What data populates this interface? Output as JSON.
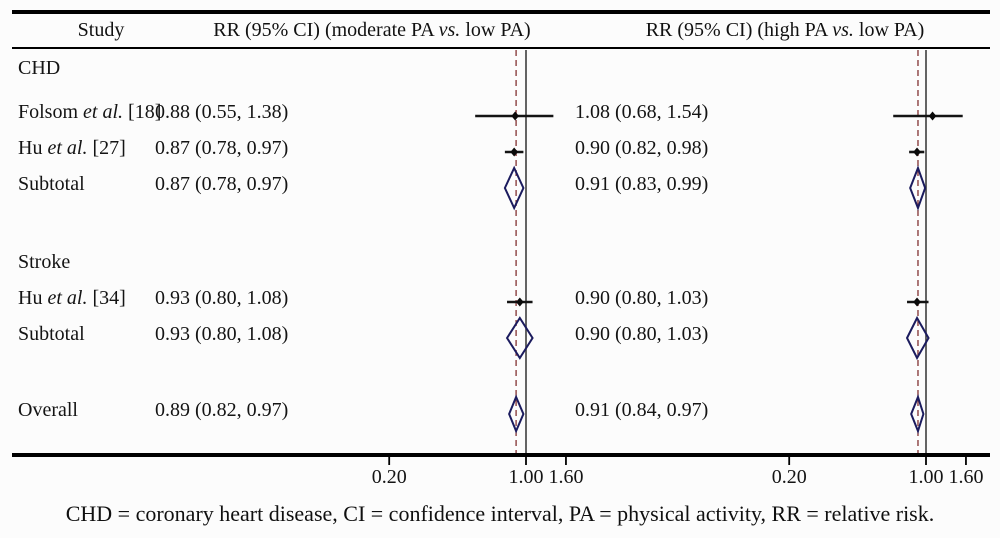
{
  "figure": {
    "header": {
      "study": "Study",
      "left_panel": {
        "pre": "RR (95% CI) (moderate PA ",
        "italic": "vs.",
        "post": " low PA)"
      },
      "right_panel": {
        "pre": "RR (95% CI) (high PA ",
        "italic": "vs.",
        "post": " low PA)"
      }
    },
    "footnote": "CHD = coronary heart disease, CI = confidence interval, PA = physical activity, RR = relative risk."
  },
  "colors": {
    "rule": "#000000",
    "ci_line": "#141414",
    "point_marker": "#0a0a0a",
    "null_line": "#4a4a4a",
    "overall_dashed_line": "#8b4040",
    "diamond_outline": "#1b1b5e",
    "text": "#141414"
  },
  "chart_data": {
    "type": "forest",
    "x_scale": "log",
    "null_value": 1.0,
    "tick_values": [
      0.2,
      1.0,
      1.6
    ],
    "tick_labels": [
      "0.20",
      "1.00",
      "1.60"
    ],
    "panels": [
      {
        "title": "RR (95% CI) (moderate PA vs. low PA)",
        "overall_rr": 0.89
      },
      {
        "title": "RR (95% CI) (high PA vs. low PA)",
        "overall_rr": 0.91
      }
    ],
    "rows": [
      {
        "kind": "group",
        "label": {
          "pre": "CHD",
          "italic": "",
          "post": ""
        },
        "panels": [
          null,
          null
        ]
      },
      {
        "kind": "study",
        "label": {
          "pre": "Folsom ",
          "italic": "et al.",
          "post": " [18]"
        },
        "panels": [
          {
            "text": "0.88 (0.55, 1.38)",
            "rr": 0.88,
            "lo": 0.55,
            "hi": 1.38
          },
          {
            "text": "1.08 (0.68, 1.54)",
            "rr": 1.08,
            "lo": 0.68,
            "hi": 1.54
          }
        ]
      },
      {
        "kind": "study",
        "label": {
          "pre": "Hu ",
          "italic": "et al.",
          "post": " [27]"
        },
        "panels": [
          {
            "text": "0.87 (0.78, 0.97)",
            "rr": 0.87,
            "lo": 0.78,
            "hi": 0.97
          },
          {
            "text": "0.90 (0.82, 0.98)",
            "rr": 0.9,
            "lo": 0.82,
            "hi": 0.98
          }
        ]
      },
      {
        "kind": "subtotal",
        "label": {
          "pre": "Subtotal",
          "italic": "",
          "post": ""
        },
        "panels": [
          {
            "text": "0.87 (0.78, 0.97)",
            "rr": 0.87,
            "lo": 0.78,
            "hi": 0.97
          },
          {
            "text": "0.91 (0.83, 0.99)",
            "rr": 0.91,
            "lo": 0.83,
            "hi": 0.99
          }
        ]
      },
      {
        "kind": "group",
        "label": {
          "pre": "Stroke",
          "italic": "",
          "post": ""
        },
        "panels": [
          null,
          null
        ]
      },
      {
        "kind": "study",
        "label": {
          "pre": "Hu ",
          "italic": "et al.",
          "post": " [34]"
        },
        "panels": [
          {
            "text": "0.93 (0.80, 1.08)",
            "rr": 0.93,
            "lo": 0.8,
            "hi": 1.08
          },
          {
            "text": "0.90 (0.80, 1.03)",
            "rr": 0.9,
            "lo": 0.8,
            "hi": 1.03
          }
        ]
      },
      {
        "kind": "subtotal",
        "label": {
          "pre": "Subtotal",
          "italic": "",
          "post": ""
        },
        "panels": [
          {
            "text": "0.93 (0.80, 1.08)",
            "rr": 0.93,
            "lo": 0.8,
            "hi": 1.08
          },
          {
            "text": "0.90 (0.80, 1.03)",
            "rr": 0.9,
            "lo": 0.8,
            "hi": 1.03
          }
        ]
      },
      {
        "kind": "overall",
        "label": {
          "pre": "Overall",
          "italic": "",
          "post": ""
        },
        "panels": [
          {
            "text": "0.89 (0.82, 0.97)",
            "rr": 0.89,
            "lo": 0.82,
            "hi": 0.97
          },
          {
            "text": "0.91 (0.84, 0.97)",
            "rr": 0.91,
            "lo": 0.84,
            "hi": 0.97
          }
        ]
      }
    ]
  }
}
